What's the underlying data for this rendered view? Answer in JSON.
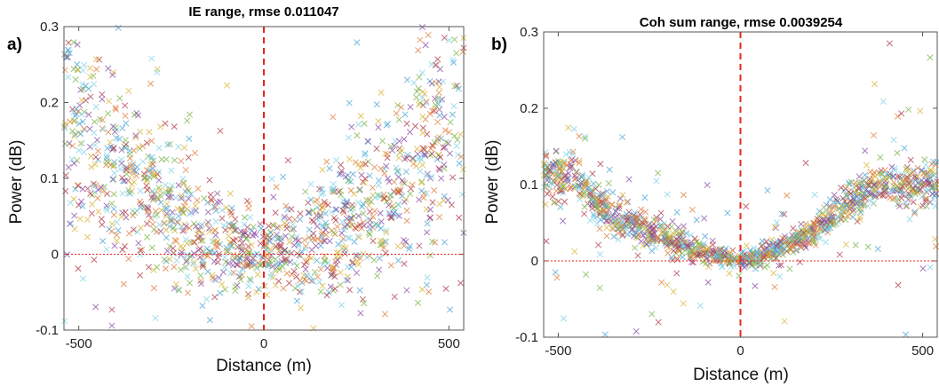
{
  "chart_data": [
    {
      "type": "scatter",
      "panel": "a)",
      "title": "IE range, rmse 0.011047",
      "xlabel": "Distance (m)",
      "ylabel": "Power (dB)",
      "xlim": [
        -540,
        540
      ],
      "ylim": [
        -0.1,
        0.3
      ],
      "xticks": [
        -500,
        0,
        500
      ],
      "yticks": [
        -0.1,
        0,
        0.1,
        0.2,
        0.3
      ],
      "xtick_labels": [
        "-500",
        "0",
        "500"
      ],
      "ytick_labels": [
        "-0.1",
        "0",
        "0.1",
        "0.2",
        "0.3"
      ],
      "marker": "x",
      "reference_lines": {
        "x": 0,
        "y": 0
      },
      "series_colors": [
        "#4aa3d6",
        "#e07b39",
        "#d9b43a",
        "#8a4ca6",
        "#7ab648",
        "#7fd3e8",
        "#b03a4a"
      ],
      "trend": {
        "x": [
          -540,
          -400,
          -300,
          -200,
          -100,
          0,
          100,
          200,
          300,
          400,
          540
        ],
        "y": [
          0.2,
          0.12,
          0.07,
          0.03,
          0.01,
          0.0,
          0.01,
          0.03,
          0.07,
          0.12,
          0.2
        ]
      },
      "noise": 0.06,
      "point_count": 1400
    },
    {
      "type": "scatter",
      "panel": "b)",
      "title": "Coh sum range, rmse 0.0039254",
      "xlabel": "Distance (m)",
      "ylabel": "Power (dB)",
      "xlim": [
        -540,
        540
      ],
      "ylim": [
        -0.1,
        0.3
      ],
      "xticks": [
        -500,
        0,
        500
      ],
      "yticks": [
        -0.1,
        0,
        0.1,
        0.2,
        0.3
      ],
      "xtick_labels": [
        "-500",
        "0",
        "500"
      ],
      "ytick_labels": [
        "-0.1",
        "0",
        "0.1",
        "0.2",
        "0.3"
      ],
      "marker": "x",
      "reference_lines": {
        "x": 0,
        "y": 0
      },
      "series_colors": [
        "#4aa3d6",
        "#e07b39",
        "#d9b43a",
        "#8a4ca6",
        "#7ab648",
        "#7fd3e8",
        "#b03a4a"
      ],
      "trend": {
        "x": [
          -460,
          -400,
          -300,
          -250,
          -200,
          -100,
          0,
          100,
          200,
          250,
          300,
          380
        ],
        "y": [
          0.11,
          0.075,
          0.05,
          0.04,
          0.03,
          0.01,
          0.0,
          0.015,
          0.04,
          0.06,
          0.08,
          0.1
        ]
      },
      "noise": 0.012,
      "point_count": 1400
    }
  ]
}
